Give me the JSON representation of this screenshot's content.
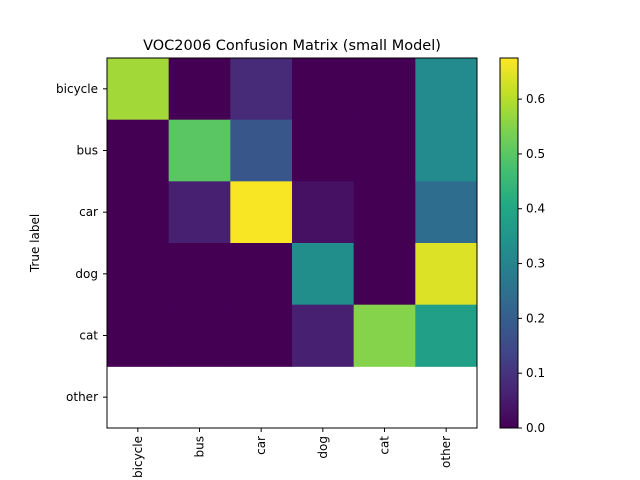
{
  "chart_data": {
    "type": "heatmap",
    "title": "VOC2006 Confusion Matrix (small Model)",
    "ylabel": "True label",
    "xlabel": "",
    "x_categories": [
      "bicycle",
      "bus",
      "car",
      "dog",
      "cat",
      "other"
    ],
    "y_categories": [
      "bicycle",
      "bus",
      "car",
      "dog",
      "cat",
      "other"
    ],
    "values": [
      [
        0.58,
        0.0,
        0.08,
        0.0,
        0.0,
        0.32
      ],
      [
        0.0,
        0.5,
        0.18,
        0.0,
        0.0,
        0.32
      ],
      [
        0.0,
        0.06,
        0.67,
        0.03,
        0.0,
        0.24
      ],
      [
        0.0,
        0.0,
        0.0,
        0.33,
        0.0,
        0.64
      ],
      [
        0.0,
        0.0,
        0.0,
        0.06,
        0.55,
        0.38
      ],
      [
        null,
        null,
        null,
        null,
        null,
        null
      ]
    ],
    "colormap": "viridis",
    "missing_color": "#ffffff",
    "colorbar": {
      "vmin": 0.0,
      "vmax": 0.675,
      "ticks": [
        0.0,
        0.1,
        0.2,
        0.3,
        0.4,
        0.5,
        0.6
      ],
      "tick_labels": [
        "0.0",
        "0.1",
        "0.2",
        "0.3",
        "0.4",
        "0.5",
        "0.6"
      ]
    },
    "grid": false
  }
}
